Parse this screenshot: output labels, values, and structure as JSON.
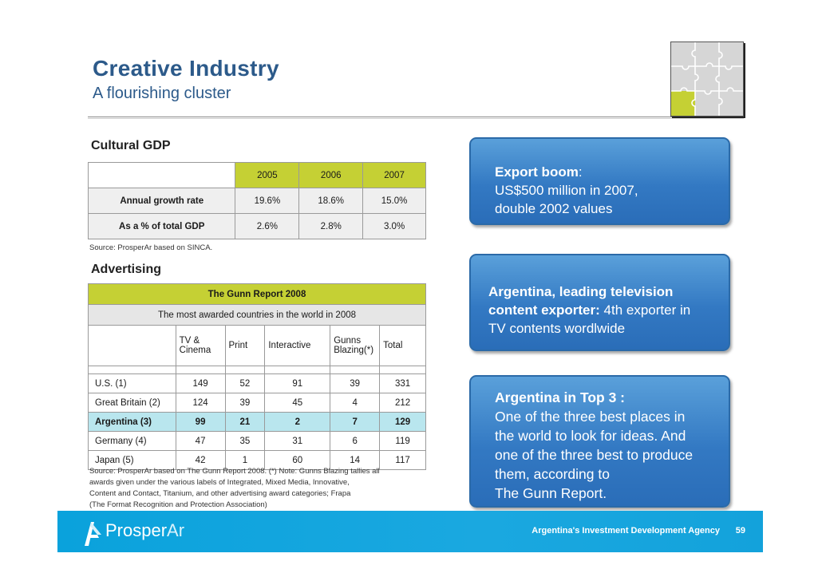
{
  "header": {
    "title": "Creative Industry",
    "subtitle": "A flourishing cluster"
  },
  "cultural_gdp": {
    "heading": "Cultural GDP",
    "columns": [
      "2005",
      "2006",
      "2007"
    ],
    "rows": [
      {
        "label": "Annual growth rate",
        "values": [
          "19.6%",
          "18.6%",
          "15.0%"
        ]
      },
      {
        "label": "As a % of total GDP",
        "values": [
          "2.6%",
          "2.8%",
          "3.0%"
        ]
      }
    ],
    "source": "Source: ProsperAr based on SINCA."
  },
  "advertising": {
    "heading": "Advertising",
    "table_title": "The Gunn Report 2008",
    "table_subtitle": "The most awarded countries in the world in 2008",
    "columns": [
      "TV &\nCinema",
      "Print",
      "Interactive",
      "Gunns\nBlazing(*)",
      "Total"
    ],
    "rows": [
      {
        "country": "U.S. (1)",
        "values": [
          "149",
          "52",
          "91",
          "39",
          "331"
        ]
      },
      {
        "country": "Great Britain (2)",
        "values": [
          "124",
          "39",
          "45",
          "4",
          "212"
        ]
      },
      {
        "country": "Argentina (3)",
        "values": [
          "99",
          "21",
          "2",
          "7",
          "129"
        ]
      },
      {
        "country": "Germany (4)",
        "values": [
          "47",
          "35",
          "31",
          "6",
          "119"
        ]
      },
      {
        "country": "Japan (5)",
        "values": [
          "42",
          "1",
          "60",
          "14",
          "117"
        ]
      }
    ],
    "highlight_row": "Argentina (3)",
    "source_lines": [
      "Source: ProsperAr based on The Gunn Report 2008. (*) Note: Gunns Blazing tallies all",
      "awards given under the various labels of Integrated, Mixed Media, Innovative,",
      "Content and Contact, Titanium, and other advertising award categories; Frapa",
      "(The Format Recognition and Protection Association)"
    ]
  },
  "callouts": {
    "export": {
      "bold": "Export boom",
      "after_bold": ":",
      "line2": "US$500 million in 2007,",
      "line3": "double 2002 values"
    },
    "tv": {
      "bold1": "Argentina, leading television",
      "bold2": "content exporter:",
      "rest2": " 4th exporter in",
      "line3": "TV contents wordlwide"
    },
    "top3": {
      "bold": "Argentina in Top 3 :",
      "lines": [
        "One of the three best places in",
        "the world to look for ideas. And",
        "one of the three best to produce",
        "them, according to",
        "The Gunn Report."
      ]
    }
  },
  "footer": {
    "brand_a": "Prosper",
    "brand_b": "Ar",
    "agency": "Argentina's Investment Development Agency",
    "page": "59"
  },
  "colors": {
    "title_blue": "#2c5a8a",
    "lime": "#c5d034",
    "callout_blue": "#3379c3",
    "footer_cyan": "#0aa2dc",
    "highlight_row": "#b9e6ee"
  },
  "icons": {
    "puzzle": "puzzle-grid-icon",
    "logo": "prosperar-logo-icon"
  }
}
